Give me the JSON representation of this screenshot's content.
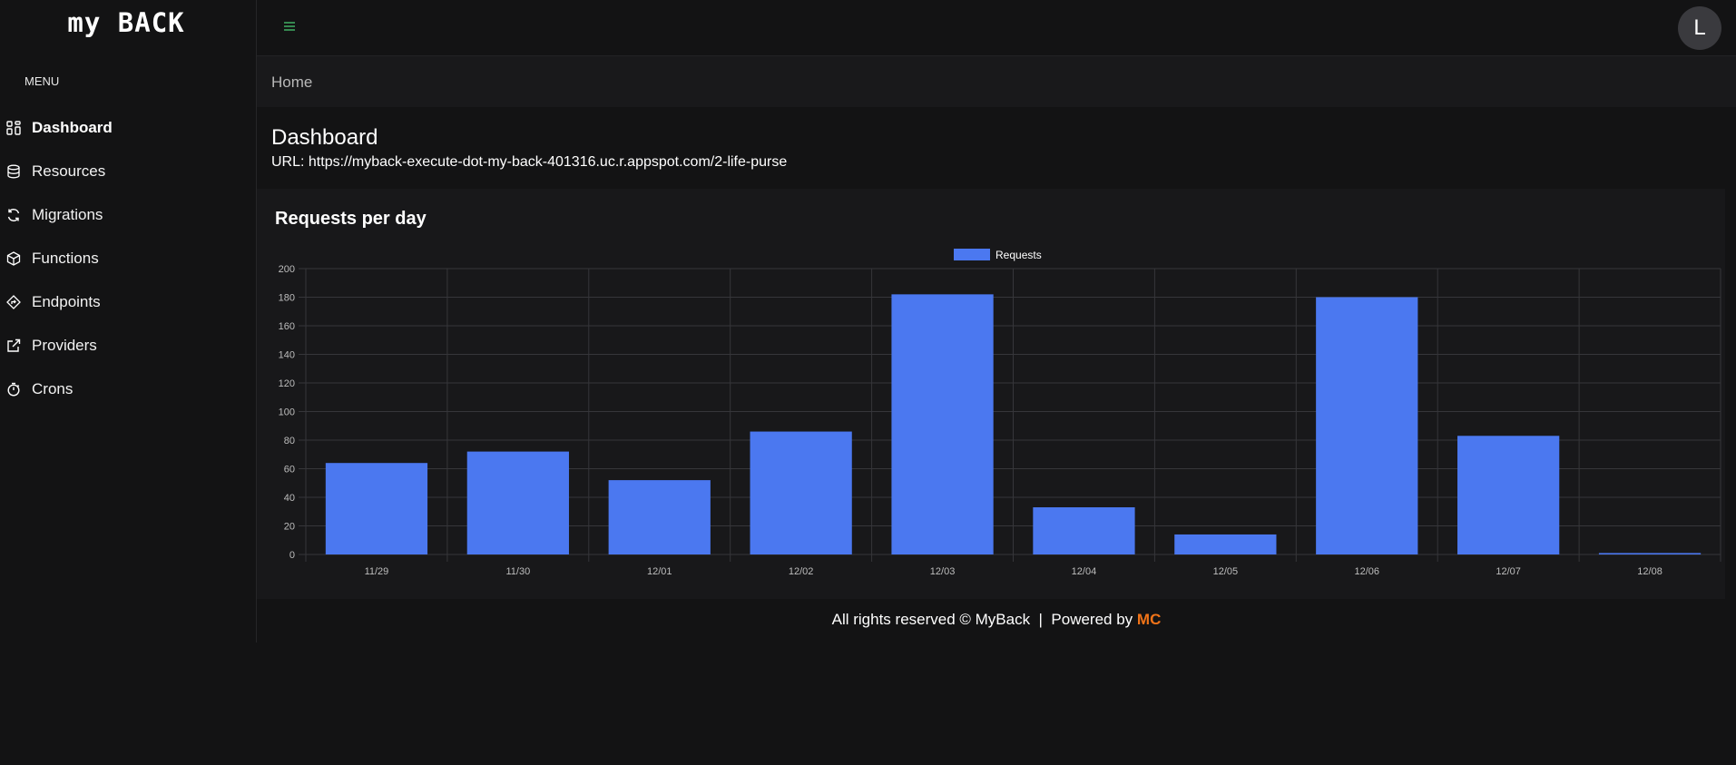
{
  "app": {
    "logo": "my BACK"
  },
  "sidebar": {
    "menu_title": "MENU",
    "items": [
      {
        "label": "Dashboard",
        "icon": "dashboard-icon",
        "active": true
      },
      {
        "label": "Resources",
        "icon": "database-icon"
      },
      {
        "label": "Migrations",
        "icon": "refresh-icon"
      },
      {
        "label": "Functions",
        "icon": "cube-icon"
      },
      {
        "label": "Endpoints",
        "icon": "route-icon"
      },
      {
        "label": "Providers",
        "icon": "external-link-icon"
      },
      {
        "label": "Crons",
        "icon": "timer-icon"
      }
    ]
  },
  "header": {
    "avatar_letter": "L",
    "menu_icon": "hamburger-icon",
    "accent": "#3ea660"
  },
  "breadcrumb": {
    "home": "Home"
  },
  "page": {
    "title": "Dashboard",
    "url_label": "URL: https://myback-execute-dot-my-back-401316.uc.r.appspot.com/2-life-purse"
  },
  "card": {
    "title": "Requests per day"
  },
  "chart_data": {
    "type": "bar",
    "title": "Requests per day",
    "categories": [
      "11/29",
      "11/30",
      "12/01",
      "12/02",
      "12/03",
      "12/04",
      "12/05",
      "12/06",
      "12/07",
      "12/08"
    ],
    "series": [
      {
        "name": "Requests",
        "values": [
          64,
          72,
          52,
          86,
          182,
          33,
          14,
          180,
          83,
          1
        ],
        "color": "#4b78f0"
      }
    ],
    "ylim": [
      0,
      200
    ],
    "yticks": [
      0,
      20,
      40,
      60,
      80,
      100,
      120,
      140,
      160,
      180,
      200
    ],
    "grid": true,
    "legend": "top-center"
  },
  "footer": {
    "text": "All rights reserved © MyBack  |  Powered by ",
    "brand": "MC",
    "brand_color": "#f07318"
  }
}
